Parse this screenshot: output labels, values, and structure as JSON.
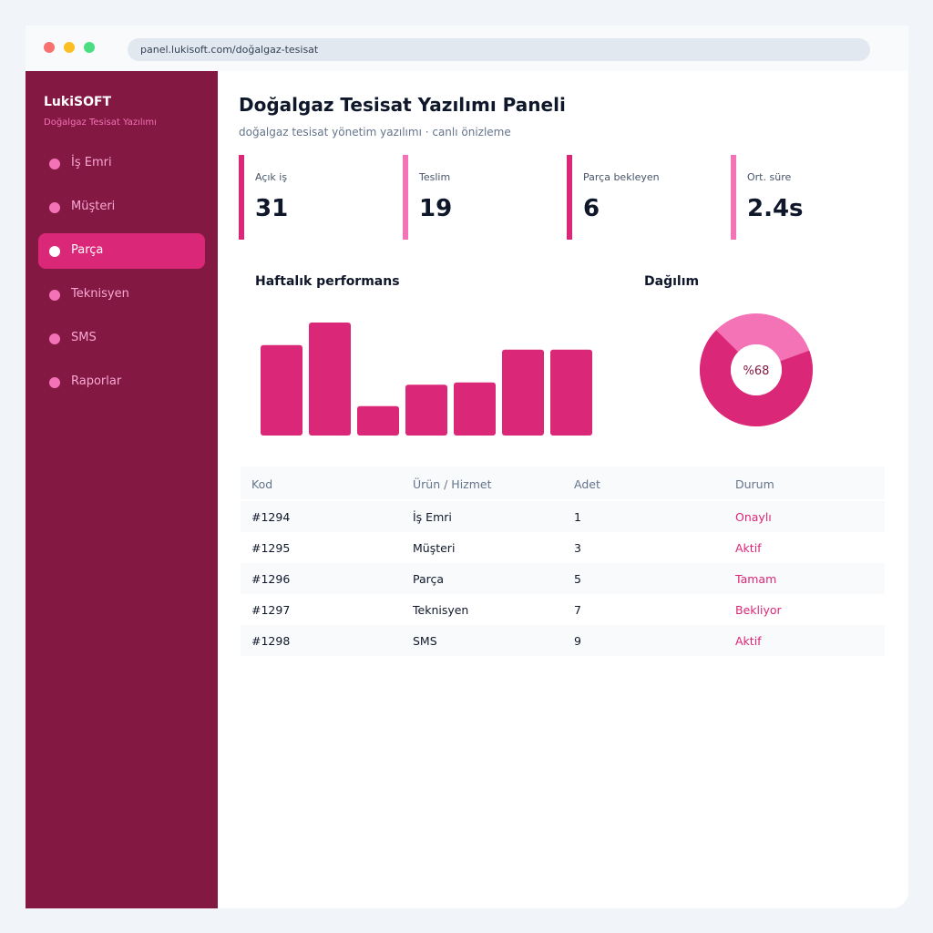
{
  "browser": {
    "url": "panel.lukisoft.com/doğalgaz-tesisat"
  },
  "sidebar": {
    "brand": "LukiSOFT",
    "subtitle": "Doğalgaz Tesisat Yazılımı",
    "items": [
      "İş Emri",
      "Müşteri",
      "Parça",
      "Teknisyen",
      "SMS",
      "Raporlar"
    ],
    "active": 2
  },
  "header": {
    "title": "Doğalgaz Tesisat Yazılımı Paneli",
    "subtitle": "doğalgaz tesisat yönetim yazılımı · canlı önizleme"
  },
  "stats": [
    {
      "label": "Açık iş",
      "value": "31"
    },
    {
      "label": "Teslim",
      "value": "19"
    },
    {
      "label": "Parça bekleyen",
      "value": "6"
    },
    {
      "label": "Ort. süre",
      "value": "2.4s"
    }
  ],
  "chart_data": [
    {
      "type": "bar",
      "title": "Haftalık performans",
      "values": [
        80,
        100,
        26,
        45,
        47,
        76,
        76
      ],
      "color": "#db2777"
    },
    {
      "type": "pie",
      "title": "Dağılım",
      "values": [
        68
      ],
      "value_labels": [
        "%68"
      ],
      "colors": [
        "#db2777",
        "#f472b6"
      ]
    }
  ],
  "table": {
    "columns": [
      "Kod",
      "Ürün / Hizmet",
      "Adet",
      "Durum"
    ],
    "rows": [
      [
        "#1294",
        "İş Emri",
        "1",
        "Onaylı"
      ],
      [
        "#1295",
        "Müşteri",
        "3",
        "Aktif"
      ],
      [
        "#1296",
        "Parça",
        "5",
        "Tamam"
      ],
      [
        "#1297",
        "Teknisyen",
        "7",
        "Bekliyor"
      ],
      [
        "#1298",
        "SMS",
        "9",
        "Aktif"
      ]
    ]
  }
}
